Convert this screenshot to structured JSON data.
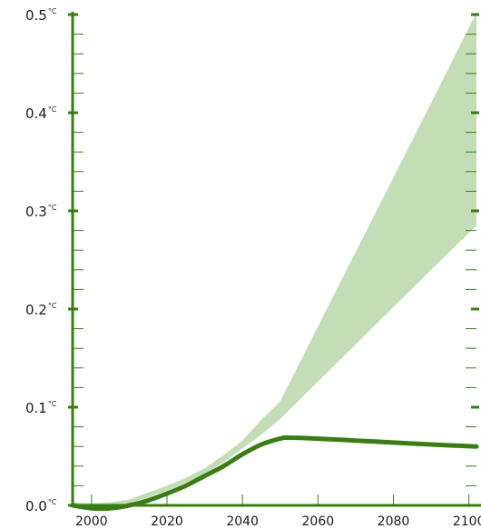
{
  "chart_data": {
    "type": "area",
    "title": "",
    "xlabel": "",
    "ylabel": "",
    "xlim": [
      1995,
      2102
    ],
    "ylim": [
      0.0,
      0.5
    ],
    "x_ticks": [
      {
        "value": 2000,
        "label": "2000"
      },
      {
        "value": 2020,
        "label": "2020"
      },
      {
        "value": 2040,
        "label": "2040"
      },
      {
        "value": 2060,
        "label": "2060"
      },
      {
        "value": 2080,
        "label": "2080"
      },
      {
        "value": 2100,
        "label": "2100"
      }
    ],
    "y_ticks": [
      {
        "value": 0.0,
        "main": "0.0",
        "unit": "°C"
      },
      {
        "value": 0.1,
        "main": "0.1",
        "unit": "°C"
      },
      {
        "value": 0.2,
        "main": "0.2",
        "unit": "°C"
      },
      {
        "value": 0.3,
        "main": "0.3",
        "unit": "°C"
      },
      {
        "value": 0.4,
        "main": "0.4",
        "unit": "°C"
      },
      {
        "value": 0.5,
        "main": "0.5",
        "unit": "°C"
      }
    ],
    "y_minor_step": 0.02,
    "grid": false,
    "colors": {
      "axis": "#3a7d14",
      "line": "#3a7d14",
      "band": "#c3ddb6"
    },
    "series": [
      {
        "kind": "band",
        "x": [
          1995,
          2000,
          2005,
          2010,
          2015,
          2020,
          2025,
          2030,
          2035,
          2040,
          2045,
          2050,
          2060,
          2070,
          2080,
          2090,
          2102
        ],
        "upper": [
          0.003,
          0.002,
          0.003,
          0.006,
          0.013,
          0.02,
          0.028,
          0.038,
          0.051,
          0.066,
          0.087,
          0.106,
          0.182,
          0.258,
          0.334,
          0.41,
          0.502
        ],
        "lower": [
          0.001,
          0.0,
          0.0,
          0.002,
          0.008,
          0.015,
          0.023,
          0.032,
          0.044,
          0.058,
          0.072,
          0.088,
          0.126,
          0.164,
          0.202,
          0.24,
          0.285
        ]
      },
      {
        "kind": "line",
        "x": [
          1995,
          2000,
          2005,
          2010,
          2015,
          2020,
          2025,
          2030,
          2035,
          2040,
          2045,
          2050,
          2052,
          2060,
          2070,
          2080,
          2090,
          2102
        ],
        "values": [
          0.0,
          -0.003,
          -0.003,
          0.0,
          0.005,
          0.012,
          0.02,
          0.03,
          0.04,
          0.052,
          0.062,
          0.068,
          0.069,
          0.068,
          0.066,
          0.064,
          0.062,
          0.06
        ]
      }
    ]
  }
}
